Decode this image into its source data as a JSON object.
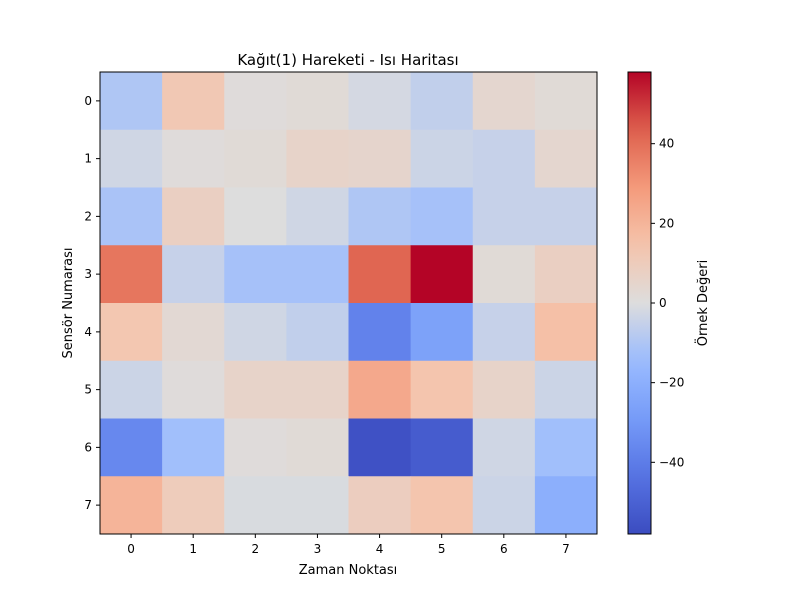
{
  "chart_data": {
    "type": "heatmap",
    "title": "Kağıt(1) Hareketi - Isı Haritası",
    "xlabel": "Zaman Noktası",
    "ylabel": "Sensör Numarası",
    "x_categories": [
      "0",
      "1",
      "2",
      "3",
      "4",
      "5",
      "6",
      "7"
    ],
    "y_categories": [
      "0",
      "1",
      "2",
      "3",
      "4",
      "5",
      "6",
      "7"
    ],
    "values": [
      [
        -10,
        12,
        1,
        2,
        -2,
        -6,
        4,
        2
      ],
      [
        -3,
        1,
        2,
        6,
        5,
        -4,
        -5,
        4
      ],
      [
        -11,
        8,
        0,
        -3,
        -10,
        -12,
        -5,
        -5
      ],
      [
        38,
        -5,
        -12,
        -12,
        42,
        58,
        2,
        8
      ],
      [
        13,
        3,
        -3,
        -6,
        -38,
        -26,
        -5,
        16
      ],
      [
        -4,
        1,
        6,
        6,
        24,
        14,
        6,
        -4
      ],
      [
        -36,
        -13,
        1,
        2,
        -56,
        -52,
        -3,
        -13
      ],
      [
        20,
        10,
        -1,
        -1,
        9,
        14,
        -4,
        -20
      ]
    ],
    "colormap": "coolwarm",
    "vmin": -58,
    "vmax": 58,
    "colorbar": {
      "label": "Örnek Değeri",
      "ticks": [
        -40,
        -20,
        0,
        20,
        40
      ],
      "tick_labels": [
        "−40",
        "−20",
        "0",
        "20",
        "40"
      ],
      "placement": "right"
    }
  }
}
